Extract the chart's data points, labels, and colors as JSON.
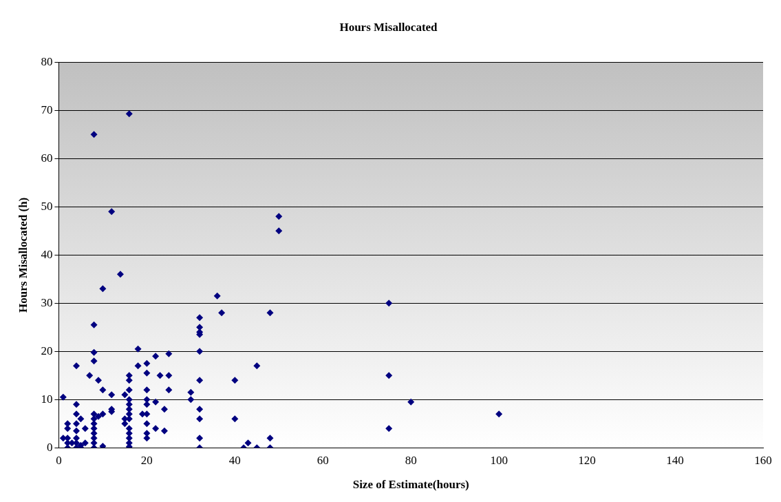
{
  "chart_data": {
    "type": "scatter",
    "title": "Hours Misallocated",
    "xlabel": "Size of Estimate(hours)",
    "ylabel": "Hours Misallocated (h)",
    "xlim": [
      0,
      160
    ],
    "xticks": [
      0,
      20,
      40,
      60,
      80,
      100,
      120,
      140,
      160
    ],
    "ylim": [
      0,
      80
    ],
    "yticks": [
      0,
      10,
      20,
      30,
      40,
      50,
      60,
      70,
      80
    ],
    "grid": "y",
    "legend": false,
    "marker": "diamond",
    "series": [
      {
        "color": "#000080",
        "x": [
          1,
          1,
          2,
          2,
          2,
          2,
          2,
          3,
          4,
          4,
          4,
          4,
          4,
          4,
          4,
          4,
          5,
          5,
          5,
          6,
          6,
          7,
          8,
          8,
          8,
          8,
          8,
          8,
          8,
          8,
          8,
          8,
          8,
          8,
          9,
          9,
          10,
          10,
          10,
          10,
          12,
          12,
          12,
          12,
          14,
          15,
          15,
          15,
          16,
          16,
          16,
          16,
          16,
          16,
          16,
          16,
          16,
          16,
          16,
          16,
          16,
          16,
          18,
          18,
          19,
          20,
          20,
          20,
          20,
          20,
          20,
          20,
          20,
          20,
          22,
          22,
          22,
          23,
          24,
          24,
          25,
          25,
          25,
          30,
          30,
          32,
          32,
          32,
          32,
          32,
          32,
          32,
          32,
          32,
          32,
          36,
          37,
          40,
          40,
          42,
          43,
          45,
          45,
          48,
          48,
          48,
          50,
          50,
          75,
          75,
          75,
          80,
          100
        ],
        "values": [
          10.5,
          2,
          1,
          0,
          2,
          4,
          5,
          1,
          17,
          9,
          7,
          5,
          3.5,
          2,
          1,
          0,
          0.5,
          6,
          0,
          1,
          4,
          15,
          65,
          25.5,
          19.8,
          18,
          7,
          6,
          5,
          4,
          3,
          2,
          1,
          0,
          14,
          6.5,
          33,
          12,
          7,
          0.3,
          49,
          11,
          8,
          7.5,
          36,
          11,
          6,
          5,
          69.3,
          15,
          14,
          12,
          10,
          9,
          8,
          7,
          6,
          4,
          3,
          2,
          1,
          0.2,
          20.5,
          17,
          7,
          17.5,
          15.5,
          12,
          10,
          9,
          7,
          5,
          3,
          2,
          19,
          9.5,
          4,
          15,
          8,
          3.5,
          19.5,
          15,
          12,
          11.5,
          10,
          27,
          25,
          24,
          23.5,
          20,
          14,
          8,
          6,
          2,
          0,
          31.5,
          28,
          14,
          6,
          0,
          1,
          17,
          0,
          28,
          2,
          0,
          48,
          45,
          30,
          15,
          4,
          9.5,
          7
        ]
      }
    ]
  }
}
